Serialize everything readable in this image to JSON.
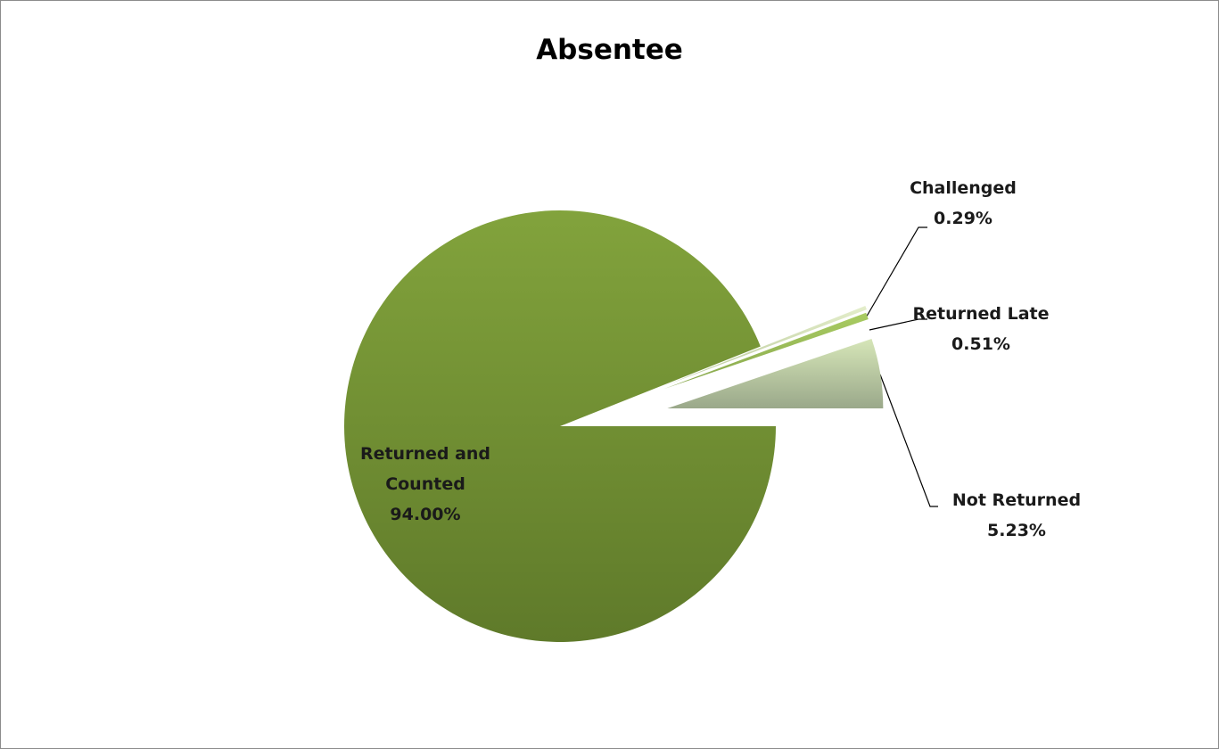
{
  "chart_data": {
    "type": "pie",
    "title": "Absentee",
    "categories": [
      "Returned and Counted",
      "Challenged",
      "Returned Late",
      "Not Returned"
    ],
    "values": [
      94.0,
      0.29,
      0.51,
      5.23
    ],
    "value_labels": [
      "94.00%",
      "0.29%",
      "0.51%",
      "5.23%"
    ],
    "colors": [
      "#76923c",
      "#d7e4bd",
      "#9bbb59",
      "#c3d69b"
    ]
  }
}
